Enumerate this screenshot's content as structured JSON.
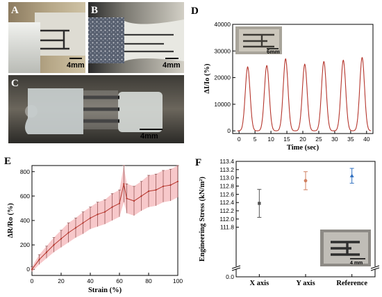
{
  "panels": {
    "A": {
      "letter": "A",
      "scale_label": "4mm"
    },
    "B": {
      "letter": "B",
      "scale_label": "4mm"
    },
    "C": {
      "letter": "C",
      "scale_label": "4mm"
    },
    "D": {
      "letter": "D",
      "inset_scale_label": "6mm"
    },
    "E": {
      "letter": "E"
    },
    "F": {
      "letter": "F",
      "inset_scale_label": "4 mm"
    }
  },
  "colors": {
    "line": "#b5352c",
    "band": "#f2a3a6",
    "grey_point": "#555555",
    "orange_point": "#d08060",
    "blue_point": "#3070c0"
  },
  "chart_data": [
    {
      "panel": "D",
      "type": "line",
      "xlabel": "Time (sec)",
      "ylabel": "∆I/Io (%)",
      "xlim": [
        -2,
        42
      ],
      "ylim": [
        -1000,
        40000
      ],
      "xticks": [
        0,
        5,
        10,
        15,
        20,
        25,
        30,
        35,
        40
      ],
      "yticks": [
        0,
        10000,
        20000,
        30000,
        40000
      ],
      "peaks": [
        {
          "t": 2.7,
          "value": 24000
        },
        {
          "t": 8.7,
          "value": 24500
        },
        {
          "t": 14.6,
          "value": 27000
        },
        {
          "t": 20.6,
          "value": 25000
        },
        {
          "t": 26.6,
          "value": 26000
        },
        {
          "t": 32.7,
          "value": 26500
        },
        {
          "t": 38.6,
          "value": 27500
        }
      ]
    },
    {
      "panel": "E",
      "type": "line",
      "xlabel": "Strain (%)",
      "ylabel": "∆R/Ro (%)",
      "xlim": [
        0,
        100
      ],
      "ylim": [
        -50,
        850
      ],
      "xticks": [
        0,
        20,
        40,
        60,
        80,
        100
      ],
      "yticks": [
        0,
        200,
        400,
        600,
        800
      ],
      "x": [
        0,
        5,
        10,
        15,
        20,
        25,
        30,
        35,
        40,
        45,
        50,
        55,
        60,
        63,
        65,
        70,
        75,
        80,
        85,
        90,
        95,
        100
      ],
      "y": [
        0,
        80,
        140,
        200,
        250,
        300,
        340,
        380,
        420,
        450,
        470,
        510,
        540,
        700,
        580,
        560,
        600,
        640,
        650,
        680,
        690,
        720
      ],
      "err": [
        20,
        40,
        50,
        60,
        70,
        80,
        80,
        90,
        90,
        100,
        100,
        110,
        110,
        150,
        120,
        120,
        120,
        130,
        130,
        130,
        130,
        130
      ]
    },
    {
      "panel": "F",
      "type": "scatter",
      "xlabel": "",
      "ylabel": "Engineering Stress (kN/m²)",
      "categories": [
        "X axis",
        "Y axis",
        "Reference"
      ],
      "values": [
        112.38,
        112.93,
        113.05
      ],
      "errors": [
        0.34,
        0.22,
        0.18
      ],
      "ylim": [
        110.9,
        113.4
      ],
      "yticks": [
        111.8,
        112.0,
        112.2,
        112.4,
        112.6,
        112.8,
        113.0,
        113.2,
        113.4
      ],
      "extra_ytick": 0.0,
      "axis_break": true
    }
  ]
}
